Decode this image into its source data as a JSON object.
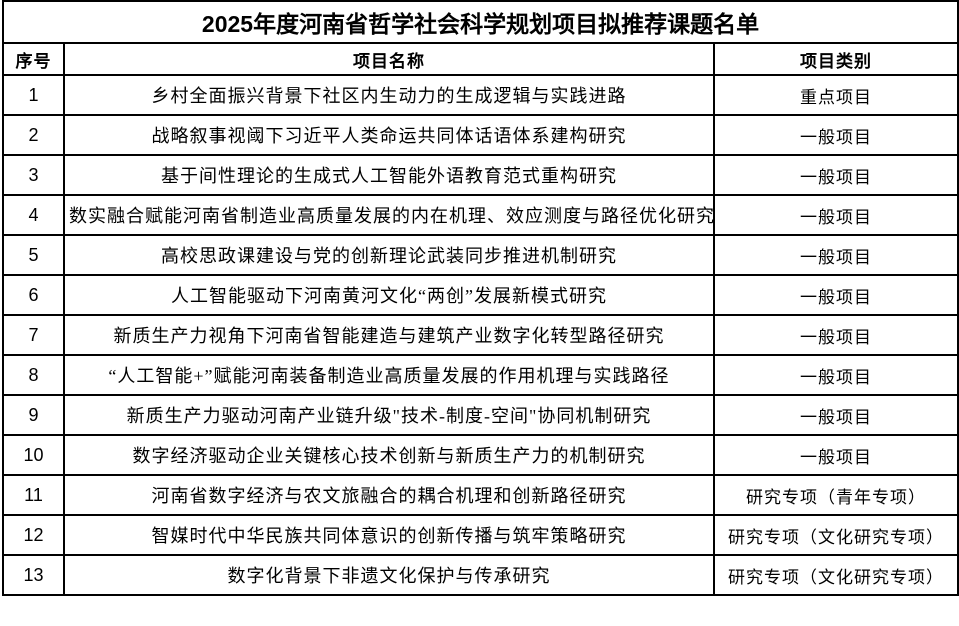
{
  "title": "2025年度河南省哲学社会科学规划项目拟推荐课题名单",
  "table": {
    "headers": [
      "序号",
      "项目名称",
      "项目类别"
    ],
    "rows": [
      {
        "no": "1",
        "name": "乡村全面振兴背景下社区内生动力的生成逻辑与实践进路",
        "category": "重点项目"
      },
      {
        "no": "2",
        "name": "战略叙事视阈下习近平人类命运共同体话语体系建构研究",
        "category": "一般项目"
      },
      {
        "no": "3",
        "name": "基于间性理论的生成式人工智能外语教育范式重构研究",
        "category": "一般项目"
      },
      {
        "no": "4",
        "name": "数实融合赋能河南省制造业高质量发展的内在机理、效应测度与路径优化研究",
        "category": "一般项目"
      },
      {
        "no": "5",
        "name": "高校思政课建设与党的创新理论武装同步推进机制研究",
        "category": "一般项目"
      },
      {
        "no": "6",
        "name": "人工智能驱动下河南黄河文化“两创”发展新模式研究",
        "category": "一般项目"
      },
      {
        "no": "7",
        "name": "新质生产力视角下河南省智能建造与建筑产业数字化转型路径研究",
        "category": "一般项目"
      },
      {
        "no": "8",
        "name": "“人工智能+”赋能河南装备制造业高质量发展的作用机理与实践路径",
        "category": "一般项目"
      },
      {
        "no": "9",
        "name": "新质生产力驱动河南产业链升级\"技术-制度-空间\"协同机制研究",
        "category": "一般项目"
      },
      {
        "no": "10",
        "name": "数字经济驱动企业关键核心技术创新与新质生产力的机制研究",
        "category": "一般项目"
      },
      {
        "no": "11",
        "name": "河南省数字经济与农文旅融合的耦合机理和创新路径研究",
        "category": "研究专项（青年专项）"
      },
      {
        "no": "12",
        "name": "智媒时代中华民族共同体意识的创新传播与筑牢策略研究",
        "category": "研究专项（文化研究专项）"
      },
      {
        "no": "13",
        "name": "数字化背景下非遗文化保护与传承研究",
        "category": "研究专项（文化研究专项）"
      }
    ]
  }
}
